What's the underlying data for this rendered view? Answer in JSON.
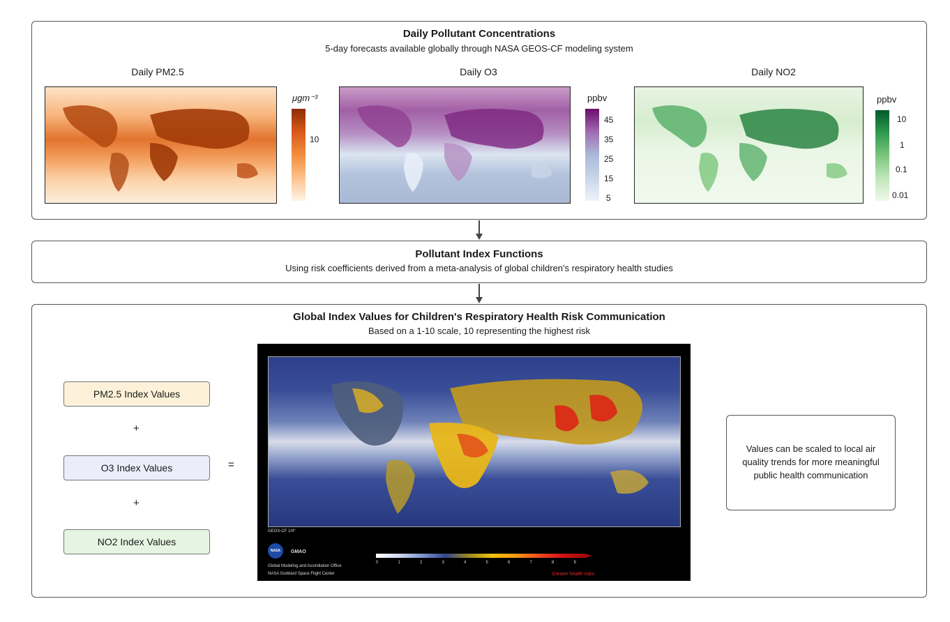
{
  "top_panel": {
    "title": "Daily Pollutant Concentrations",
    "subtitle": "5-day forecasts available globally through NASA GEOS-CF modeling system",
    "maps": [
      {
        "label": "Daily PM2.5",
        "unit": "μgm⁻³",
        "ticks": [
          "10"
        ],
        "palette": [
          "#fff1e4",
          "#fdc28c",
          "#f38d3d",
          "#d9591a",
          "#8c2d04"
        ]
      },
      {
        "label": "Daily O3",
        "unit": "ppbv",
        "ticks": [
          "45",
          "35",
          "25",
          "15",
          "5"
        ],
        "palette": [
          "#eef3fa",
          "#c8d5e8",
          "#a9b9d8",
          "#a06bb0",
          "#6b0d6b"
        ]
      },
      {
        "label": "Daily NO2",
        "unit": "ppbv",
        "ticks": [
          "10",
          "1",
          "0.1",
          "0.01"
        ],
        "palette": [
          "#eef8ea",
          "#c0e6b9",
          "#7cc57c",
          "#2f9a4e",
          "#00592a"
        ]
      }
    ]
  },
  "middle_panel": {
    "title": "Pollutant Index Functions",
    "subtitle": "Using risk coefficients derived from a meta-analysis of global children's respiratory health studies"
  },
  "bottom_panel": {
    "title": "Global Index Values for Children's Respiratory Health Risk Communication",
    "subtitle": "Based on a 1-10 scale, 10 representing the highest risk",
    "index_boxes": [
      {
        "label": "PM2.5 Index Values",
        "color": "#fdf2d9"
      },
      {
        "label": "O3 Index Values",
        "color": "#ecedfa"
      },
      {
        "label": "NO2 Index Values",
        "color": "#e5f5e2"
      }
    ],
    "plus": "+",
    "equals": "=",
    "note": "Values can be scaled to local air quality trends for more meaningful public health communication",
    "map": {
      "model_label": "GEOS-CF  1/4°",
      "org_logo_text": "NASA",
      "org_short": "GMAO",
      "org_line1": "Global Modeling and Assimilation Office",
      "org_line2": "NASA Goddard Space Flight Center",
      "scale_ticks": [
        "0",
        "1",
        "2",
        "3",
        "4",
        "5",
        "6",
        "7",
        "8",
        "9"
      ],
      "scale_caption": "Greater health risks",
      "scale_colors": [
        "#ffffff",
        "#cfd8ee",
        "#7e95cc",
        "#34468c",
        "#9c8a20",
        "#f2c10c",
        "#f79a16",
        "#ee4b1c",
        "#d11414",
        "#a40a0a"
      ]
    }
  }
}
